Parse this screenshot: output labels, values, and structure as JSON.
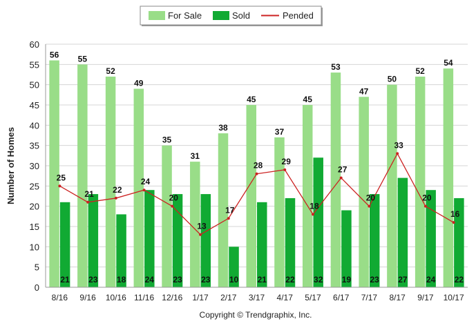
{
  "chart_data": {
    "type": "bar",
    "categories": [
      "8/16",
      "9/16",
      "10/16",
      "11/16",
      "12/16",
      "1/17",
      "2/17",
      "3/17",
      "4/17",
      "5/17",
      "6/17",
      "7/17",
      "8/17",
      "9/17",
      "10/17"
    ],
    "series": [
      {
        "name": "For Sale",
        "type": "bar",
        "color": "#99dd88",
        "values": [
          56,
          55,
          52,
          49,
          35,
          31,
          38,
          45,
          37,
          45,
          53,
          47,
          50,
          52,
          54
        ]
      },
      {
        "name": "Sold",
        "type": "bar",
        "color": "#11aa33",
        "values": [
          21,
          23,
          18,
          24,
          23,
          23,
          10,
          21,
          22,
          32,
          19,
          23,
          27,
          24,
          22
        ]
      },
      {
        "name": "Pended",
        "type": "line",
        "color": "#cc2222",
        "values": [
          25,
          21,
          22,
          24,
          20,
          13,
          17,
          28,
          29,
          18,
          27,
          20,
          33,
          20,
          16
        ]
      }
    ],
    "title": "",
    "xlabel": "",
    "ylabel": "Number of Homes",
    "ylim": [
      0,
      60
    ],
    "yticks": [
      "0",
      "5",
      "10",
      "15",
      "20",
      "25",
      "30",
      "35",
      "40",
      "45",
      "50",
      "55",
      "60"
    ],
    "grid": true,
    "legend_position": "top-center"
  },
  "footer": {
    "copyright": "Copyright © Trendgraphix, Inc."
  }
}
